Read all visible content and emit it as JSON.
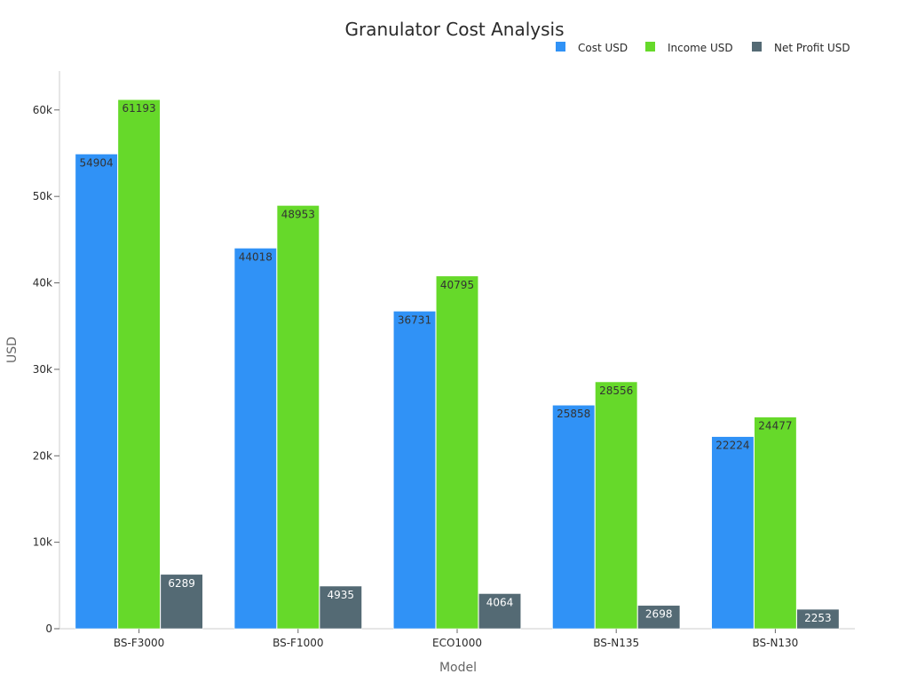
{
  "chart_data": {
    "type": "bar",
    "title": "Granulator Cost Analysis",
    "xlabel": "Model",
    "ylabel": "USD",
    "categories": [
      "BS-F3000",
      "BS-F1000",
      "ECO1000",
      "BS-N135",
      "BS-N130"
    ],
    "series": [
      {
        "name": "Cost USD",
        "color": "#3092f6",
        "label_color": "#333333",
        "values": [
          54904,
          44018,
          36731,
          25858,
          22224
        ]
      },
      {
        "name": "Income USD",
        "color": "#66d92a",
        "label_color": "#333333",
        "values": [
          61193,
          48953,
          40795,
          28556,
          24477
        ]
      },
      {
        "name": "Net Profit USD",
        "color": "#546a74",
        "label_color": "#ffffff",
        "values": [
          6289,
          4935,
          4064,
          2698,
          2253
        ]
      }
    ],
    "ylim": [
      0,
      64500
    ],
    "yticks": [
      {
        "value": 0,
        "label": "0"
      },
      {
        "value": 10000,
        "label": "10k"
      },
      {
        "value": 20000,
        "label": "20k"
      },
      {
        "value": 30000,
        "label": "30k"
      },
      {
        "value": 40000,
        "label": "40k"
      },
      {
        "value": 50000,
        "label": "50k"
      },
      {
        "value": 60000,
        "label": "60k"
      }
    ],
    "legend_position": "top-right",
    "grid": false
  }
}
